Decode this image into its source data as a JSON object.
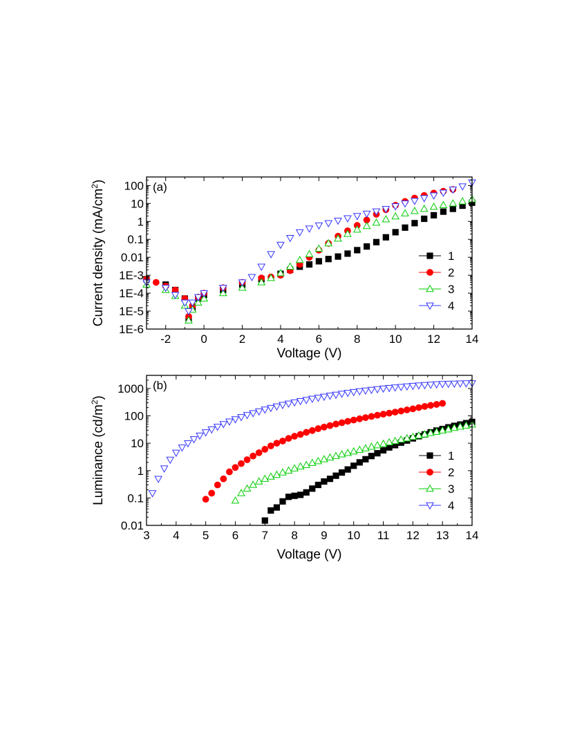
{
  "chart_data": [
    {
      "id": "a",
      "type": "scatter",
      "panel_label": "(a)",
      "xlabel": "Voltage (V)",
      "ylabel_main": "Current density (mA/cm",
      "ylabel_sup": "2",
      "ylabel_close": ")",
      "yscale": "log",
      "xlim": [
        -3,
        14
      ],
      "ylim": [
        1e-06,
        300
      ],
      "xticks": [
        -2,
        0,
        2,
        4,
        6,
        8,
        10,
        12,
        14
      ],
      "xtick_labels": [
        "-2",
        "0",
        "2",
        "4",
        "6",
        "8",
        "10",
        "12",
        "14"
      ],
      "yticks": [
        1e-06,
        1e-05,
        0.0001,
        0.001,
        0.01,
        0.1,
        1,
        10,
        100
      ],
      "ytick_labels": [
        "1E-6",
        "1E-5",
        "1E-4",
        "1E-3",
        "0.01",
        "0.1",
        "1",
        "10",
        "100"
      ],
      "legend_position": "right",
      "series": [
        {
          "name": "1",
          "marker": "square",
          "color": "#000000",
          "x": [
            -3,
            -2,
            -1.5,
            -1,
            -0.8,
            -0.6,
            -0.3,
            0,
            1,
            2,
            3,
            4,
            4.5,
            5,
            5.5,
            6,
            6.5,
            7,
            7.5,
            8,
            8.5,
            9,
            9.5,
            10,
            10.5,
            11,
            11.5,
            12,
            12.5,
            13,
            13.5,
            14
          ],
          "y": [
            0.0006,
            0.0003,
            0.00015,
            5e-05,
            4e-06,
            1.5e-05,
            5e-05,
            8e-05,
            0.00015,
            0.0003,
            0.0006,
            0.0012,
            0.002,
            0.003,
            0.004,
            0.006,
            0.008,
            0.011,
            0.016,
            0.025,
            0.04,
            0.07,
            0.13,
            0.25,
            0.45,
            0.8,
            1.4,
            2.2,
            3.5,
            5,
            7.5,
            11
          ]
        },
        {
          "name": "2",
          "marker": "circle",
          "color": "#ff0000",
          "x": [
            -3,
            -2.5,
            -2,
            -1.5,
            -1,
            -0.8,
            -0.6,
            -0.3,
            0,
            1,
            2,
            3,
            3.5,
            4,
            4.5,
            5,
            5.5,
            6,
            6.5,
            7,
            7.5,
            8,
            8.5,
            9,
            9.5,
            10,
            10.5,
            11,
            11.5,
            12,
            12.5,
            13
          ],
          "y": [
            0.0006,
            0.0004,
            0.00025,
            0.00015,
            5e-05,
            5e-06,
            2e-05,
            6e-05,
            0.0001,
            0.0002,
            0.0004,
            0.0007,
            0.0008,
            0.001,
            0.0018,
            0.004,
            0.01,
            0.025,
            0.06,
            0.15,
            0.3,
            0.6,
            1.2,
            2.5,
            4.5,
            8,
            13,
            20,
            28,
            38,
            48,
            60
          ]
        },
        {
          "name": "3",
          "marker": "triangle-up",
          "color": "#00cc00",
          "x": [
            -3,
            -2,
            -1.5,
            -1,
            -0.8,
            -0.6,
            -0.3,
            0,
            1,
            2,
            3,
            3.5,
            4,
            4.5,
            5,
            5.5,
            6,
            6.5,
            7,
            7.5,
            8,
            8.5,
            9,
            9.5,
            10,
            10.5,
            11,
            11.5,
            12,
            12.5,
            13,
            13.5,
            14
          ],
          "y": [
            0.0003,
            0.00015,
            7e-05,
            2e-05,
            3e-06,
            1.2e-05,
            3e-05,
            5e-05,
            0.0001,
            0.0002,
            0.0004,
            0.0007,
            0.0013,
            0.003,
            0.007,
            0.015,
            0.03,
            0.06,
            0.11,
            0.2,
            0.35,
            0.55,
            0.85,
            1.3,
            1.9,
            2.8,
            3.8,
            5,
            6.5,
            8,
            10,
            13,
            17
          ]
        },
        {
          "name": "4",
          "marker": "triangle-down",
          "color": "#3333ff",
          "x": [
            -3,
            -2,
            -1.5,
            -1,
            -0.8,
            -0.6,
            -0.3,
            0,
            1,
            2,
            2.5,
            3,
            3.5,
            4,
            4.5,
            5,
            5.5,
            6,
            6.5,
            7,
            7.5,
            8,
            8.5,
            9,
            9.5,
            10,
            10.5,
            11,
            11.5,
            12,
            12.5,
            13,
            13.5,
            14
          ],
          "y": [
            0.0004,
            0.0002,
            8e-05,
            3e-05,
            1e-05,
            3e-05,
            6e-05,
            0.0001,
            0.0002,
            0.0004,
            0.0008,
            0.003,
            0.015,
            0.05,
            0.12,
            0.25,
            0.4,
            0.6,
            0.8,
            1.1,
            1.5,
            2,
            2.7,
            3.6,
            5,
            7,
            10,
            14,
            20,
            28,
            40,
            60,
            90,
            150
          ]
        }
      ]
    },
    {
      "id": "b",
      "type": "scatter",
      "panel_label": "(b)",
      "xlabel": "Voltage (V)",
      "ylabel_main": "Luminance (cd/m",
      "ylabel_sup": "2",
      "ylabel_close": ")",
      "yscale": "log",
      "xlim": [
        3,
        14
      ],
      "ylim": [
        0.01,
        3000
      ],
      "xticks": [
        3,
        4,
        5,
        6,
        7,
        8,
        9,
        10,
        11,
        12,
        13,
        14
      ],
      "xtick_labels": [
        "3",
        "4",
        "5",
        "6",
        "7",
        "8",
        "9",
        "10",
        "11",
        "12",
        "13",
        "14"
      ],
      "yticks": [
        0.01,
        0.1,
        1,
        10,
        100,
        1000
      ],
      "ytick_labels": [
        "0.01",
        "0.1",
        "1",
        "10",
        "100",
        "1000"
      ],
      "legend_position": "right",
      "series": [
        {
          "name": "1",
          "marker": "square",
          "color": "#000000",
          "x": [
            7,
            7.2,
            7.4,
            7.6,
            7.8,
            8,
            8.2,
            8.4,
            8.6,
            8.8,
            9,
            9.2,
            9.4,
            9.6,
            9.8,
            10,
            10.2,
            10.4,
            10.6,
            10.8,
            11,
            11.2,
            11.4,
            11.6,
            11.8,
            12,
            12.2,
            12.4,
            12.6,
            12.8,
            13,
            13.2,
            13.4,
            13.6,
            13.8,
            14
          ],
          "y": [
            0.015,
            0.035,
            0.045,
            0.075,
            0.11,
            0.12,
            0.13,
            0.16,
            0.22,
            0.3,
            0.4,
            0.5,
            0.65,
            0.85,
            1.1,
            1.5,
            2,
            2.6,
            3.4,
            4.3,
            5.5,
            7,
            8.5,
            10.5,
            12.5,
            15,
            18,
            21,
            25,
            29,
            33,
            38,
            43,
            48,
            54,
            60
          ]
        },
        {
          "name": "2",
          "marker": "circle",
          "color": "#ff0000",
          "x": [
            5,
            5.2,
            5.4,
            5.6,
            5.8,
            6,
            6.2,
            6.4,
            6.6,
            6.8,
            7,
            7.2,
            7.4,
            7.6,
            7.8,
            8,
            8.2,
            8.4,
            8.6,
            8.8,
            9,
            9.2,
            9.4,
            9.6,
            9.8,
            10,
            10.2,
            10.4,
            10.6,
            10.8,
            11,
            11.2,
            11.4,
            11.6,
            11.8,
            12,
            12.2,
            12.4,
            12.6,
            12.8,
            13
          ],
          "y": [
            0.09,
            0.15,
            0.3,
            0.5,
            0.9,
            1.3,
            1.8,
            2.5,
            3.4,
            4.5,
            6,
            8,
            10,
            12,
            15,
            18,
            21,
            25,
            29,
            34,
            39,
            44,
            50,
            56,
            63,
            70,
            78,
            86,
            95,
            105,
            115,
            125,
            137,
            150,
            165,
            180,
            200,
            220,
            240,
            260,
            285
          ]
        },
        {
          "name": "3",
          "marker": "triangle-up",
          "color": "#00cc00",
          "x": [
            6,
            6.2,
            6.4,
            6.6,
            6.8,
            7,
            7.2,
            7.4,
            7.6,
            7.8,
            8,
            8.2,
            8.4,
            8.6,
            8.8,
            9,
            9.2,
            9.4,
            9.6,
            9.8,
            10,
            10.2,
            10.4,
            10.6,
            10.8,
            11,
            11.2,
            11.4,
            11.6,
            11.8,
            12,
            12.2,
            12.4,
            12.6,
            12.8,
            13,
            13.2,
            13.4,
            13.6,
            13.8,
            14
          ],
          "y": [
            0.08,
            0.15,
            0.22,
            0.3,
            0.4,
            0.5,
            0.6,
            0.7,
            0.85,
            1,
            1.2,
            1.4,
            1.6,
            1.9,
            2.2,
            2.6,
            3,
            3.4,
            3.9,
            4.4,
            5,
            5.7,
            6.5,
            7.4,
            8.4,
            9.5,
            10.7,
            12,
            13.5,
            15,
            17,
            19,
            21,
            23.5,
            26,
            29,
            32,
            36,
            40,
            44,
            48
          ]
        },
        {
          "name": "4",
          "marker": "triangle-down",
          "color": "#3333ff",
          "x": [
            3.2,
            3.4,
            3.6,
            3.8,
            4,
            4.2,
            4.4,
            4.6,
            4.8,
            5,
            5.2,
            5.4,
            5.6,
            5.8,
            6,
            6.2,
            6.4,
            6.6,
            6.8,
            7,
            7.2,
            7.4,
            7.6,
            7.8,
            8,
            8.2,
            8.4,
            8.6,
            8.8,
            9,
            9.2,
            9.4,
            9.6,
            9.8,
            10,
            10.2,
            10.4,
            10.6,
            10.8,
            11,
            11.2,
            11.4,
            11.6,
            11.8,
            12,
            12.2,
            12.4,
            12.6,
            12.8,
            13,
            13.2,
            13.4,
            13.6,
            13.8,
            14
          ],
          "y": [
            0.15,
            0.5,
            1.2,
            2.5,
            4.5,
            7,
            10,
            14,
            19,
            25,
            32,
            40,
            50,
            62,
            75,
            90,
            107,
            125,
            145,
            170,
            195,
            220,
            250,
            280,
            310,
            345,
            380,
            420,
            460,
            500,
            545,
            590,
            640,
            690,
            740,
            790,
            840,
            890,
            940,
            990,
            1040,
            1090,
            1140,
            1190,
            1240,
            1290,
            1330,
            1370,
            1410,
            1450,
            1480,
            1500,
            1520,
            1540,
            1550
          ]
        }
      ]
    }
  ]
}
